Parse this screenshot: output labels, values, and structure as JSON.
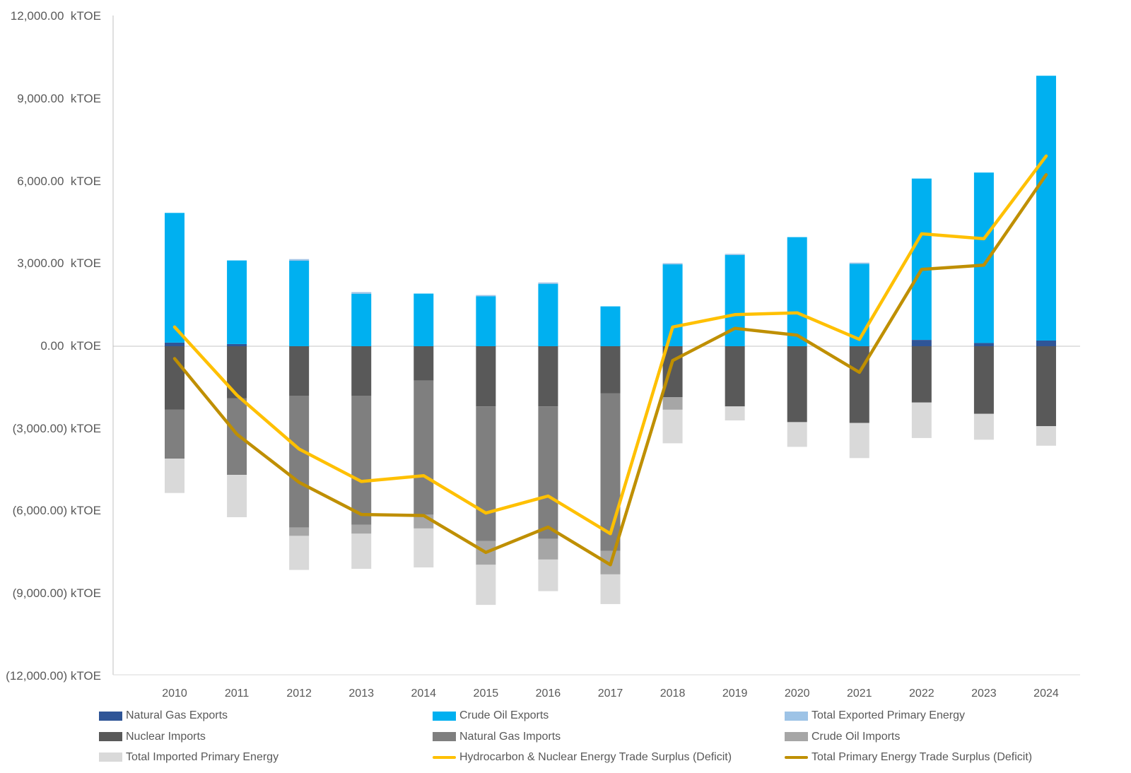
{
  "chart_data": {
    "type": "bar",
    "subtype": "stacked-bar-with-lines",
    "title": "",
    "unit": "kTOE",
    "categories": [
      "2010",
      "2011",
      "2012",
      "2013",
      "2014",
      "2015",
      "2016",
      "2017",
      "2018",
      "2019",
      "2020",
      "2021",
      "2022",
      "2023",
      "2024"
    ],
    "y_axis": {
      "min": -12000,
      "max": 12000,
      "step": 3000,
      "tick_values": [
        12000,
        9000,
        6000,
        3000,
        0,
        -3000,
        -6000,
        -9000,
        -12000
      ],
      "tick_labels": [
        "12,000.00  kTOE",
        "9,000.00  kTOE",
        "6,000.00  kTOE",
        "3,000.00  kTOE",
        "0.00  kTOE",
        "(3,000.00) kTOE",
        "(6,000.00) kTOE",
        "(9,000.00) kTOE",
        "(12,000.00) kTOE"
      ]
    },
    "grid": "zero-line-only",
    "legend_position": "bottom",
    "bar_series": [
      {
        "name": "Natural Gas Exports",
        "color": "#2F5597",
        "values": [
          130,
          80,
          0,
          0,
          0,
          0,
          0,
          0,
          0,
          0,
          0,
          0,
          230,
          120,
          205
        ]
      },
      {
        "name": "Crude Oil Exports",
        "color": "#00B0F0",
        "values": [
          4720,
          3040,
          3110,
          1910,
          1915,
          1820,
          2270,
          1450,
          2980,
          3320,
          3970,
          3000,
          5870,
          6200,
          9635
        ]
      },
      {
        "name": "Total Exported Primary Energy",
        "color": "#9DC3E6",
        "values": [
          0,
          0,
          60,
          60,
          0,
          40,
          50,
          0,
          40,
          40,
          0,
          40,
          0,
          0,
          0
        ]
      },
      {
        "name": "Nuclear Imports",
        "color": "#595959",
        "values": [
          -2300,
          -1890,
          -1800,
          -1800,
          -1250,
          -2190,
          -2190,
          -1710,
          -1850,
          -2190,
          -2760,
          -2790,
          -2050,
          -2460,
          -2910
        ]
      },
      {
        "name": "Natural Gas Imports",
        "color": "#7F7F7F",
        "values": [
          -1790,
          -2790,
          -4800,
          -4700,
          -4880,
          -4900,
          -4820,
          -5740,
          0,
          0,
          0,
          0,
          0,
          0,
          0
        ]
      },
      {
        "name": "Crude Oil Imports",
        "color": "#A6A6A6",
        "values": [
          0,
          0,
          -300,
          -320,
          -500,
          -860,
          -750,
          -850,
          -460,
          0,
          0,
          0,
          0,
          0,
          0
        ]
      },
      {
        "name": "Total Imported Primary Energy",
        "color": "#D9D9D9",
        "values": [
          -1250,
          -1540,
          -1240,
          -1280,
          -1420,
          -1460,
          -1150,
          -1080,
          -1220,
          -510,
          -900,
          -1280,
          -1290,
          -940,
          -710
        ]
      }
    ],
    "line_series": [
      {
        "name": "Hydrocarbon & Nuclear Energy Trade Surplus (Deficit)",
        "color": "#FFC000",
        "values": [
          700,
          -1780,
          -3740,
          -4920,
          -4710,
          -6070,
          -5450,
          -6820,
          700,
          1150,
          1215,
          250,
          4090,
          3910,
          6920
        ]
      },
      {
        "name": "Total Primary Energy Trade Surplus (Deficit)",
        "color": "#BF8F00",
        "values": [
          -450,
          -3200,
          -4950,
          -6120,
          -6160,
          -7500,
          -6580,
          -7950,
          -520,
          650,
          400,
          -950,
          2795,
          2950,
          6240
        ]
      }
    ]
  },
  "legend": {
    "entries": [
      {
        "label": "Natural Gas Exports",
        "swatch": "rect",
        "color": "#2F5597",
        "col": 0,
        "row": 0
      },
      {
        "label": "Crude Oil Exports",
        "swatch": "rect",
        "color": "#00B0F0",
        "col": 1,
        "row": 0
      },
      {
        "label": "Total Exported Primary Energy",
        "swatch": "rect",
        "color": "#9DC3E6",
        "col": 2,
        "row": 0
      },
      {
        "label": "Nuclear Imports",
        "swatch": "rect",
        "color": "#595959",
        "col": 0,
        "row": 1
      },
      {
        "label": "Natural Gas Imports",
        "swatch": "rect",
        "color": "#7F7F7F",
        "col": 1,
        "row": 1
      },
      {
        "label": "Crude Oil Imports",
        "swatch": "rect",
        "color": "#A6A6A6",
        "col": 2,
        "row": 1
      },
      {
        "label": "Total Imported Primary Energy",
        "swatch": "rect",
        "color": "#D9D9D9",
        "col": 0,
        "row": 2
      },
      {
        "label": "Hydrocarbon & Nuclear Energy Trade Surplus (Deficit)",
        "swatch": "line",
        "color": "#FFC000",
        "col": 1,
        "row": 2
      },
      {
        "label": "Total Primary Energy Trade Surplus (Deficit)",
        "swatch": "line",
        "color": "#BF8F00",
        "col": 2,
        "row": 2
      }
    ]
  },
  "colors": {
    "axis_line": "#BFBFBF",
    "gridline": "#D9D9D9",
    "text": "#595959"
  }
}
